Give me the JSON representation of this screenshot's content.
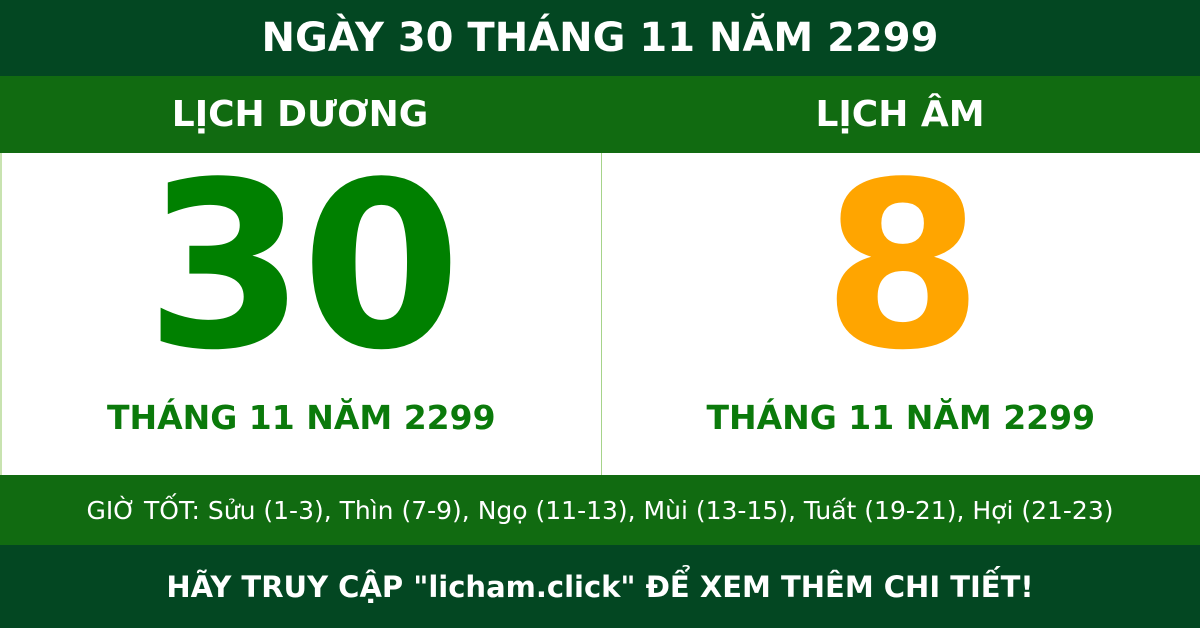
{
  "title": "NGÀY 30 THÁNG 11 NĂM 2299",
  "solar": {
    "heading": "LỊCH DƯƠNG",
    "day": "30",
    "month_year": "THÁNG 11 NĂM 2299"
  },
  "lunar": {
    "heading": "LỊCH ÂM",
    "day": "8",
    "month_year": "THÁNG 11 NĂM 2299"
  },
  "good_hours": "GIỜ TỐT: Sửu (1-3), Thìn (7-9), Ngọ (11-13), Mùi (13-15), Tuất (19-21), Hợi (21-23)",
  "footer": "HÃY TRUY CẬP \"licham.click\" ĐỂ XEM THÊM CHI TIẾT!",
  "colors": {
    "dark_green": "#034722",
    "green": "#116b11",
    "solar_day": "#008000",
    "lunar_day": "#ffa500"
  }
}
